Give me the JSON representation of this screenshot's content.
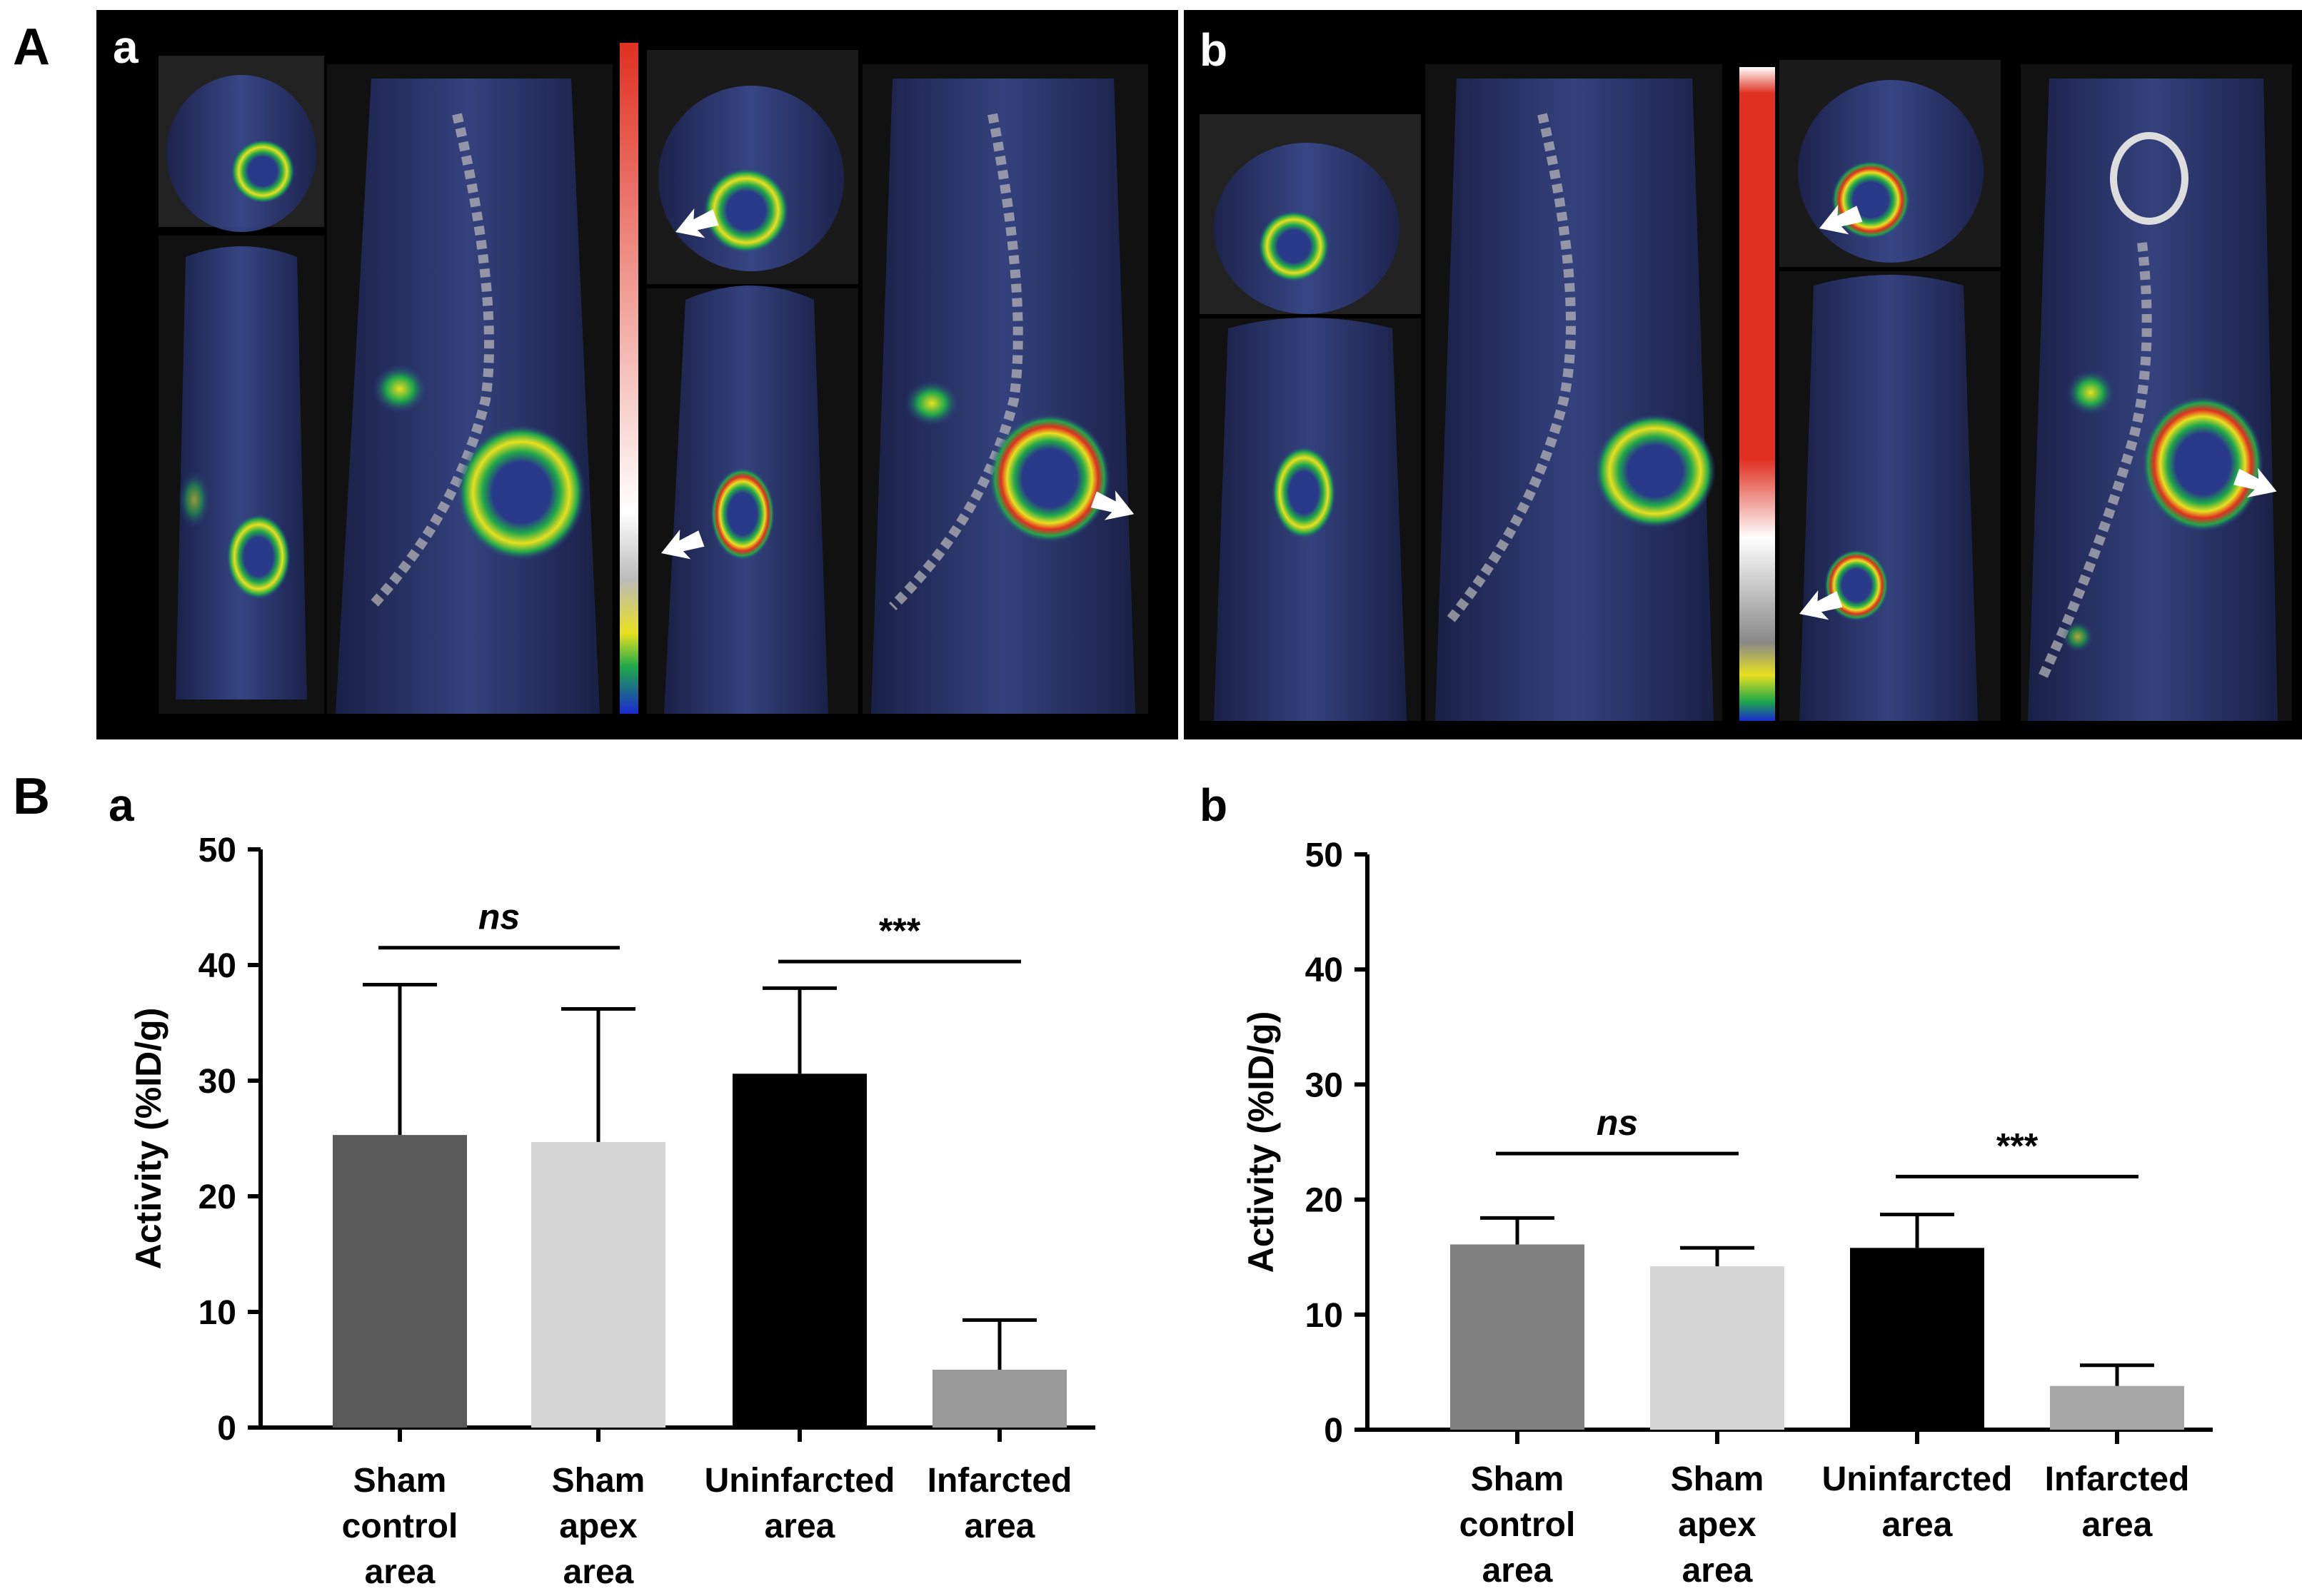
{
  "figure": {
    "panel_A_label": "A",
    "panel_B_label": "B"
  },
  "imaging": {
    "panels": [
      {
        "label": "a",
        "description_icon": "pet-ct-scan-image"
      },
      {
        "label": "b",
        "description_icon": "pet-ct-scan-image"
      }
    ],
    "colors": {
      "background": "#000000",
      "tissue": "#2a3a8a",
      "signal_low": "#1fa84a",
      "signal_mid": "#e8e020",
      "signal_high": "#e03020"
    }
  },
  "chart_data": [
    {
      "type": "bar",
      "panel_label": "a",
      "ylabel": "Activity (%ID/g)",
      "ylim": [
        0,
        50
      ],
      "yticks": [
        0,
        10,
        20,
        30,
        40,
        50
      ],
      "categories": [
        [
          "Sham",
          "control",
          "area"
        ],
        [
          "Sham",
          "apex",
          "area"
        ],
        [
          "Uninfarcted",
          "area"
        ],
        [
          "Infarcted",
          "area"
        ]
      ],
      "values": [
        25.3,
        24.7,
        30.6,
        5.0
      ],
      "errors": [
        13.0,
        11.5,
        7.4,
        4.3
      ],
      "bar_colors": [
        "#595959",
        "#d6d6d6",
        "#000000",
        "#9a9a9a"
      ],
      "significance": [
        {
          "from": 0,
          "to": 1,
          "label": "ns",
          "y": 41.5
        },
        {
          "from": 2,
          "to": 3,
          "label": "***",
          "y": 40.3
        }
      ]
    },
    {
      "type": "bar",
      "panel_label": "b",
      "ylabel": "Activity (%ID/g)",
      "ylim": [
        0,
        50
      ],
      "yticks": [
        0,
        10,
        20,
        30,
        40,
        50
      ],
      "categories": [
        [
          "Sham",
          "control",
          "area"
        ],
        [
          "Sham",
          "apex",
          "area"
        ],
        [
          "Uninfarcted",
          "area"
        ],
        [
          "Infarcted",
          "area"
        ]
      ],
      "values": [
        16.1,
        14.2,
        15.8,
        3.8
      ],
      "errors": [
        2.3,
        1.6,
        2.9,
        1.8
      ],
      "bar_colors": [
        "#808080",
        "#d6d6d6",
        "#000000",
        "#a6a6a6"
      ],
      "significance": [
        {
          "from": 0,
          "to": 1,
          "label": "ns",
          "y": 24.0
        },
        {
          "from": 2,
          "to": 3,
          "label": "***",
          "y": 22.0
        }
      ]
    }
  ]
}
